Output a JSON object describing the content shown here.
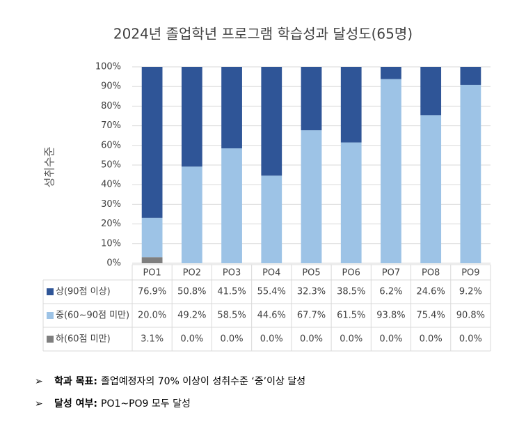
{
  "chart_data": {
    "type": "stacked_bar",
    "title": "2024년 졸업학년 프로그램 학습성과 달성도(65명)",
    "y_label": "성취수준",
    "categories": [
      "PO1",
      "PO2",
      "PO3",
      "PO4",
      "PO5",
      "PO6",
      "PO7",
      "PO8",
      "PO9"
    ],
    "series": [
      {
        "name": "상(90점 이상)",
        "color": "#2f5597",
        "values": [
          76.9,
          50.8,
          41.5,
          55.4,
          32.3,
          38.5,
          6.2,
          24.6,
          9.2
        ],
        "value_labels": [
          "76.9%",
          "50.8%",
          "41.5%",
          "55.4%",
          "32.3%",
          "38.5%",
          "6.2%",
          "24.6%",
          "9.2%"
        ]
      },
      {
        "name": "중(60~90점 미만)",
        "color": "#9dc3e6",
        "values": [
          20.0,
          49.2,
          58.5,
          44.6,
          67.7,
          61.5,
          93.8,
          75.4,
          90.8
        ],
        "value_labels": [
          "20.0%",
          "49.2%",
          "58.5%",
          "44.6%",
          "67.7%",
          "61.5%",
          "93.8%",
          "75.4%",
          "90.8%"
        ]
      },
      {
        "name": "하(60점 미만)",
        "color": "#7f7f7f",
        "values": [
          3.1,
          0,
          0,
          0,
          0,
          0,
          0,
          0,
          0
        ],
        "value_labels": [
          "3.1%",
          "0.0%",
          "0.0%",
          "0.0%",
          "0.0%",
          "0.0%",
          "0.0%",
          "0.0%",
          "0.0%"
        ]
      }
    ],
    "ylim": [
      0,
      100
    ],
    "yticks": [
      {
        "value": 0,
        "label": "0%"
      },
      {
        "value": 10,
        "label": "10%"
      },
      {
        "value": 20,
        "label": "20%"
      },
      {
        "value": 30,
        "label": "30%"
      },
      {
        "value": 40,
        "label": "40%"
      },
      {
        "value": 50,
        "label": "50%"
      },
      {
        "value": 60,
        "label": "60%"
      },
      {
        "value": 70,
        "label": "70%"
      },
      {
        "value": 80,
        "label": "80%"
      },
      {
        "value": 90,
        "label": "90%"
      },
      {
        "value": 100,
        "label": "100%"
      }
    ],
    "grid": true
  },
  "notes": [
    {
      "label": "학과 목표:",
      "text": "졸업예정자의 70% 이상이 성취수준 ‘중’이상 달성"
    },
    {
      "label": "달성 여부:",
      "text": "PO1~PO9 모두 달성"
    }
  ]
}
